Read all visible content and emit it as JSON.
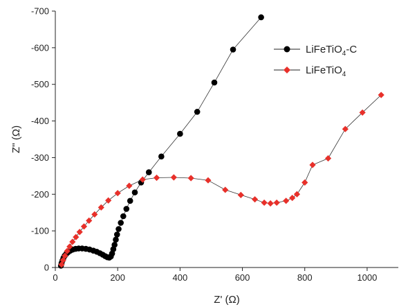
{
  "chart_data": {
    "type": "scatter",
    "xlabel": "Z' (Ω)",
    "ylabel": "Z'' (Ω)",
    "xlim": [
      0,
      1100
    ],
    "ylim": [
      0,
      -700
    ],
    "xticks": [
      "0",
      "200",
      "400",
      "600",
      "800",
      "1000"
    ],
    "yticks": [
      "0",
      "-100",
      "-200",
      "-300",
      "-400",
      "-500",
      "-600",
      "-700"
    ],
    "xtick_values": [
      0,
      200,
      400,
      600,
      800,
      1000
    ],
    "ytick_values": [
      0,
      -100,
      -200,
      -300,
      -400,
      -500,
      -600,
      -700
    ],
    "legend_position": "top-right",
    "series": [
      {
        "name": "LiFeTiO4-C",
        "legend_main": "LiFeTiO",
        "legend_sub": "4",
        "legend_tail": "-C",
        "color": "#000000",
        "marker": "circle",
        "x": [
          18,
          20,
          23,
          26,
          30,
          35,
          41,
          48,
          56,
          65,
          75,
          86,
          98,
          110,
          122,
          133,
          143,
          152,
          160,
          167,
          173,
          178,
          182,
          186,
          190,
          194,
          198,
          203,
          210,
          218,
          228,
          240,
          255,
          275,
          300,
          340,
          400,
          455,
          510,
          570,
          660
        ],
        "y": [
          -5,
          -12,
          -19,
          -26,
          -32,
          -37,
          -42,
          -46,
          -49,
          -51,
          -52,
          -52,
          -51,
          -49,
          -46,
          -43,
          -39,
          -35,
          -31,
          -28,
          -27,
          -30,
          -38,
          -50,
          -62,
          -76,
          -90,
          -105,
          -122,
          -140,
          -160,
          -182,
          -205,
          -232,
          -260,
          -303,
          -365,
          -425,
          -505,
          -595,
          -683
        ]
      },
      {
        "name": "LiFeTiO4",
        "legend_main": "LiFeTiO",
        "legend_sub": "4",
        "legend_tail": "",
        "color": "#e8302a",
        "marker": "diamond",
        "x": [
          20,
          25,
          31,
          38,
          46,
          55,
          66,
          78,
          92,
          108,
          126,
          147,
          170,
          200,
          237,
          280,
          325,
          380,
          435,
          490,
          545,
          595,
          640,
          670,
          690,
          710,
          740,
          760,
          775,
          800,
          825,
          875,
          930,
          985,
          1045
        ],
        "y": [
          -8,
          -20,
          -32,
          -45,
          -57,
          -70,
          -83,
          -97,
          -112,
          -128,
          -145,
          -164,
          -183,
          -203,
          -223,
          -240,
          -245,
          -246,
          -244,
          -238,
          -212,
          -198,
          -186,
          -177,
          -175,
          -177,
          -182,
          -190,
          -200,
          -232,
          -280,
          -298,
          -378,
          -423,
          -471
        ]
      }
    ]
  }
}
